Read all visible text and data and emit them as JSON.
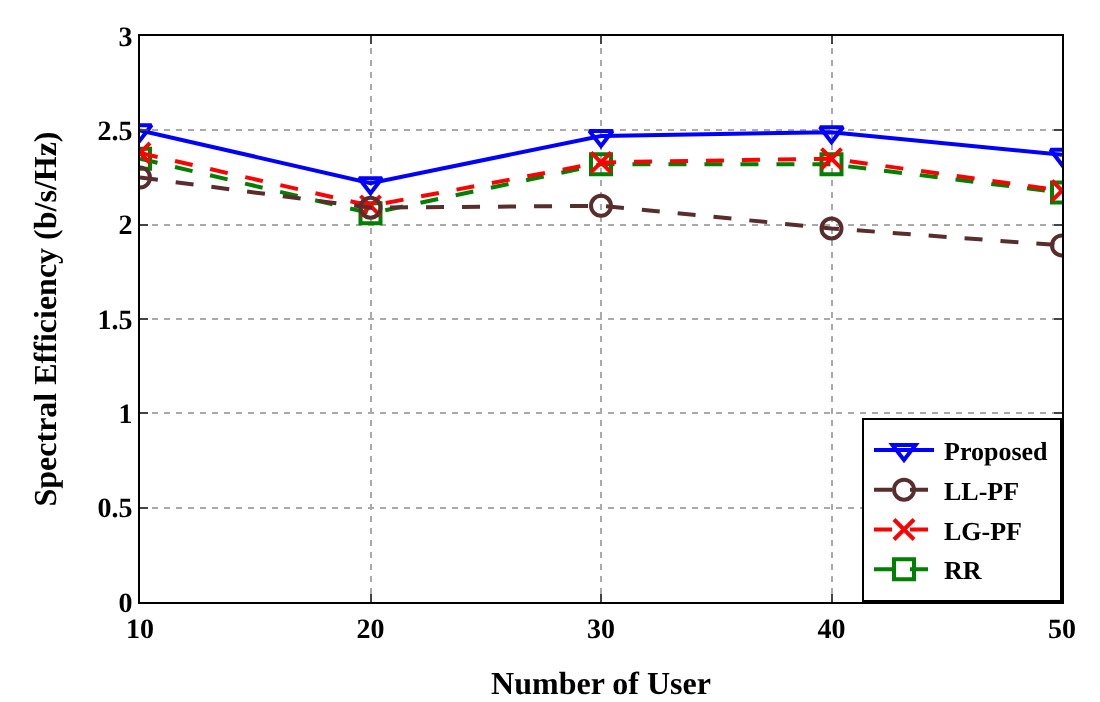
{
  "chart_data": {
    "type": "line",
    "xlabel": "Number of User",
    "ylabel": "Spectral Efficiency (b/s/Hz)",
    "x": [
      10,
      20,
      30,
      40,
      50
    ],
    "xlim": [
      10,
      50
    ],
    "xticks": [
      10,
      20,
      30,
      40,
      50
    ],
    "ylim": [
      0,
      3
    ],
    "yticks": [
      0,
      0.5,
      1,
      1.5,
      2,
      2.5,
      3
    ],
    "grid": true,
    "legend": "bottom right",
    "series": [
      {
        "name": "Proposed",
        "color": "#0000ff",
        "marker": "triangle",
        "line_style": "solid",
        "values": [
          2.5,
          2.22,
          2.47,
          2.49,
          2.37
        ]
      },
      {
        "name": "LL-PF",
        "color": "#5a2d2d",
        "marker": "circle",
        "line_style": "dashed",
        "values": [
          2.25,
          2.09,
          2.1,
          1.98,
          1.89
        ]
      },
      {
        "name": "LG-PF",
        "color": "#ff0000",
        "marker": "cross",
        "line_style": "dashed",
        "values": [
          2.38,
          2.1,
          2.33,
          2.35,
          2.18
        ]
      },
      {
        "name": "RR",
        "color": "#008000",
        "marker": "square",
        "line_style": "dashed",
        "values": [
          2.35,
          2.06,
          2.32,
          2.32,
          2.17
        ]
      }
    ]
  }
}
